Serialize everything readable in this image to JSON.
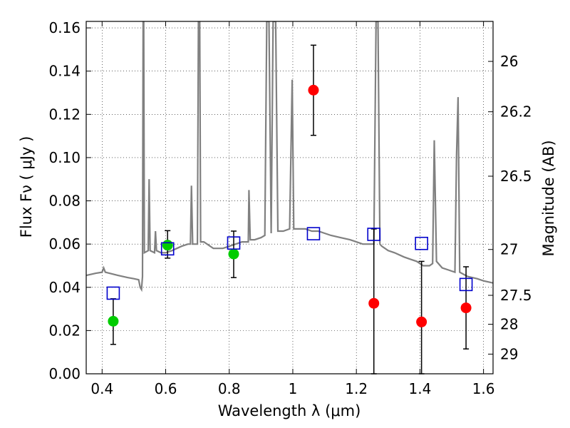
{
  "chart_data": {
    "type": "scatter",
    "xlabel": "Wavelength  λ (μm)",
    "ylabel": "Flux  Fν  ( μJy )",
    "ylabel_right": "Magnitude (AB)",
    "xlim": [
      0.35,
      1.63
    ],
    "ylim": [
      0.0,
      0.163
    ],
    "grid": true,
    "x_ticks": [
      0.4,
      0.6,
      0.8,
      1.0,
      1.2,
      1.4,
      1.6
    ],
    "x_tick_labels": [
      "0.4",
      "0.6",
      "0.8",
      "1",
      "1.2",
      "1.4",
      "1.6"
    ],
    "y_ticks": [
      0.0,
      0.02,
      0.04,
      0.06,
      0.08,
      0.1,
      0.12,
      0.14,
      0.16
    ],
    "y_tick_labels": [
      "0.00",
      "0.02",
      "0.04",
      "0.06",
      "0.08",
      "0.10",
      "0.12",
      "0.14",
      "0.16"
    ],
    "right_ticks": [
      {
        "label": "26",
        "flux": 0.1445
      },
      {
        "label": "26.2",
        "flux": 0.1212
      },
      {
        "label": "26.5",
        "flux": 0.0914
      },
      {
        "label": "27",
        "flux": 0.0575
      },
      {
        "label": "27.5",
        "flux": 0.0363
      },
      {
        "label": "28",
        "flux": 0.0229
      },
      {
        "label": "29",
        "flux": 0.0091
      }
    ],
    "model_color": "#808080",
    "series": [
      {
        "marker": "circle",
        "color": "#00cc00",
        "points": [
          {
            "x": 0.435,
            "y": 0.0243,
            "err": [
              0.0136,
              0.0347
            ]
          },
          {
            "x": 0.606,
            "y": 0.0595,
            "err": [
              0.0535,
              0.0662
            ]
          },
          {
            "x": 0.814,
            "y": 0.0554,
            "err": [
              0.0445,
              0.066
            ]
          }
        ]
      },
      {
        "marker": "circle",
        "color": "#ff0000",
        "points": [
          {
            "x": 1.065,
            "y": 0.1312,
            "err": [
              0.1103,
              0.152
            ]
          },
          {
            "x": 1.255,
            "y": 0.0326,
            "err": [
              0.0,
              0.067
            ]
          },
          {
            "x": 1.405,
            "y": 0.024,
            "err": [
              0.0,
              0.052
            ]
          },
          {
            "x": 1.545,
            "y": 0.0305,
            "err": [
              0.0115,
              0.0495
            ]
          }
        ]
      },
      {
        "marker": "square",
        "color": "#0000cc",
        "points": [
          {
            "x": 0.435,
            "y": 0.0373
          },
          {
            "x": 0.606,
            "y": 0.0578
          },
          {
            "x": 0.814,
            "y": 0.0605
          },
          {
            "x": 1.065,
            "y": 0.0648
          },
          {
            "x": 1.255,
            "y": 0.0645
          },
          {
            "x": 1.405,
            "y": 0.0603
          },
          {
            "x": 1.545,
            "y": 0.0413
          }
        ]
      }
    ],
    "model_spectrum": [
      [
        0.35,
        0.0455
      ],
      [
        0.38,
        0.0465
      ],
      [
        0.4,
        0.047
      ],
      [
        0.405,
        0.049
      ],
      [
        0.41,
        0.047
      ],
      [
        0.45,
        0.0455
      ],
      [
        0.48,
        0.0445
      ],
      [
        0.5,
        0.044
      ],
      [
        0.515,
        0.0435
      ],
      [
        0.52,
        0.04
      ],
      [
        0.524,
        0.039
      ],
      [
        0.527,
        0.045
      ],
      [
        0.529,
        0.163
      ],
      [
        0.531,
        0.163
      ],
      [
        0.533,
        0.056
      ],
      [
        0.545,
        0.057
      ],
      [
        0.548,
        0.09
      ],
      [
        0.551,
        0.057
      ],
      [
        0.565,
        0.056
      ],
      [
        0.568,
        0.066
      ],
      [
        0.571,
        0.057
      ],
      [
        0.585,
        0.056
      ],
      [
        0.6,
        0.056
      ],
      [
        0.62,
        0.057
      ],
      [
        0.65,
        0.059
      ],
      [
        0.67,
        0.06
      ],
      [
        0.678,
        0.06
      ],
      [
        0.681,
        0.087
      ],
      [
        0.685,
        0.06
      ],
      [
        0.7,
        0.06
      ],
      [
        0.703,
        0.163
      ],
      [
        0.707,
        0.163
      ],
      [
        0.71,
        0.061
      ],
      [
        0.72,
        0.061
      ],
      [
        0.75,
        0.058
      ],
      [
        0.78,
        0.058
      ],
      [
        0.8,
        0.059
      ],
      [
        0.82,
        0.06
      ],
      [
        0.84,
        0.061
      ],
      [
        0.86,
        0.061
      ],
      [
        0.862,
        0.085
      ],
      [
        0.866,
        0.062
      ],
      [
        0.88,
        0.062
      ],
      [
        0.9,
        0.063
      ],
      [
        0.912,
        0.064
      ],
      [
        0.918,
        0.163
      ],
      [
        0.925,
        0.163
      ],
      [
        0.932,
        0.065
      ],
      [
        0.938,
        0.163
      ],
      [
        0.946,
        0.163
      ],
      [
        0.953,
        0.066
      ],
      [
        0.97,
        0.066
      ],
      [
        0.99,
        0.067
      ],
      [
        0.998,
        0.136
      ],
      [
        1.003,
        0.067
      ],
      [
        1.02,
        0.067
      ],
      [
        1.04,
        0.067
      ],
      [
        1.06,
        0.066
      ],
      [
        1.08,
        0.066
      ],
      [
        1.1,
        0.065
      ],
      [
        1.12,
        0.064
      ],
      [
        1.15,
        0.063
      ],
      [
        1.18,
        0.062
      ],
      [
        1.2,
        0.061
      ],
      [
        1.22,
        0.06
      ],
      [
        1.24,
        0.06
      ],
      [
        1.255,
        0.06
      ],
      [
        1.262,
        0.163
      ],
      [
        1.268,
        0.163
      ],
      [
        1.274,
        0.06
      ],
      [
        1.28,
        0.059
      ],
      [
        1.3,
        0.057
      ],
      [
        1.32,
        0.056
      ],
      [
        1.35,
        0.054
      ],
      [
        1.37,
        0.053
      ],
      [
        1.39,
        0.052
      ],
      [
        1.4,
        0.051
      ],
      [
        1.41,
        0.05
      ],
      [
        1.43,
        0.05
      ],
      [
        1.44,
        0.051
      ],
      [
        1.445,
        0.108
      ],
      [
        1.452,
        0.052
      ],
      [
        1.47,
        0.049
      ],
      [
        1.49,
        0.048
      ],
      [
        1.51,
        0.047
      ],
      [
        1.515,
        0.1
      ],
      [
        1.52,
        0.128
      ],
      [
        1.525,
        0.047
      ],
      [
        1.55,
        0.045
      ],
      [
        1.58,
        0.044
      ],
      [
        1.6,
        0.043
      ],
      [
        1.63,
        0.042
      ]
    ]
  }
}
